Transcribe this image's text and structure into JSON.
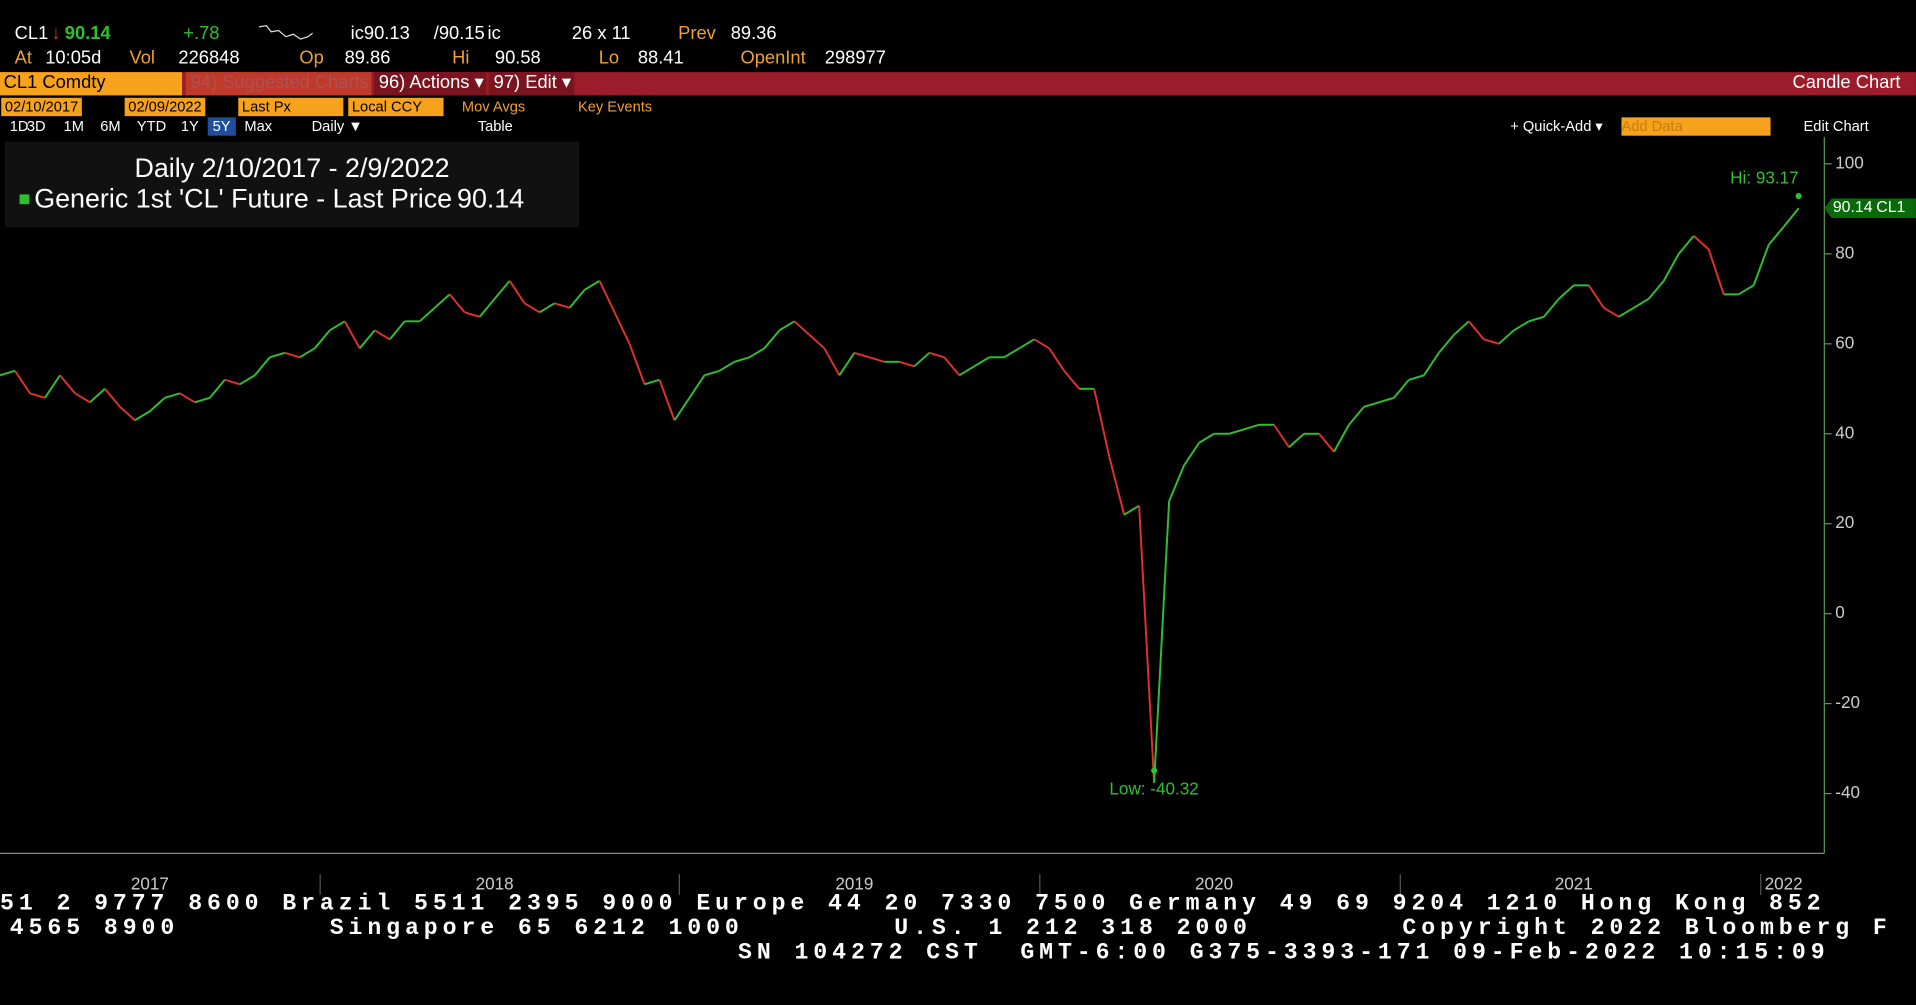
{
  "header": {
    "ticker": "CL1",
    "arrow": "↓",
    "last": "90.14",
    "change": "+.78",
    "bid": "ic90.13",
    "ask": "/90.15",
    "ask_suffix": "ic",
    "size": "26 x 11",
    "prev_label": "Prev",
    "prev": "89.36",
    "at_label": "At",
    "time": "10:05d",
    "vol_label": "Vol",
    "vol": "226848",
    "op_label": "Op",
    "op": "89.86",
    "hi_label": "Hi",
    "hi": "90.58",
    "lo_label": "Lo",
    "lo": "88.41",
    "oi_label": "OpenInt",
    "oi": "298977"
  },
  "toolbar": {
    "security": "CL1 Comdty",
    "suggested": "94) Suggested Charts",
    "actions": "96) Actions ▾",
    "edit": "97) Edit ▾",
    "chart_type": "Candle Chart"
  },
  "controls": {
    "start": "02/10/2017",
    "end": "02/09/2022",
    "field": "Last Px",
    "currency": "Local CCY",
    "mov_avgs": "Mov Avgs",
    "key_events": "Key Events",
    "periods": [
      "1D",
      "3D",
      "1M",
      "6M",
      "YTD",
      "1Y",
      "5Y",
      "Max"
    ],
    "frequency": "Daily ▼",
    "table": "Table",
    "quick_add": "+ Quick-Add ▾",
    "add_data": "Add Data",
    "edit_chart": "Edit Chart"
  },
  "chart_data": {
    "type": "line",
    "title": "Daily 2/10/2017 - 2/9/2022",
    "categories": [
      null,
      null,
      null,
      null,
      null,
      null,
      null,
      null,
      null,
      null,
      "2017",
      null,
      null,
      null,
      null,
      null,
      null,
      null,
      null,
      null,
      null,
      null,
      null,
      null,
      null,
      null,
      null,
      null,
      null,
      null,
      null,
      null,
      null,
      "2018",
      null,
      null,
      null,
      null,
      null,
      null,
      null,
      null,
      null,
      null,
      null,
      null,
      null,
      null,
      null,
      null,
      null,
      null,
      null,
      null,
      null,
      null,
      null,
      "2019",
      null,
      null,
      null,
      null,
      null,
      null,
      null,
      null,
      null,
      null,
      null,
      null,
      null,
      null,
      null,
      null,
      null,
      null,
      null,
      null,
      null,
      null,
      null,
      "2020",
      null,
      null,
      null,
      null,
      null,
      null,
      null,
      null,
      null,
      null,
      null,
      null,
      null,
      null,
      null,
      null,
      null,
      null,
      null,
      null,
      null,
      null,
      null,
      "2021",
      null,
      null,
      null,
      null,
      null,
      null,
      null,
      null,
      null,
      null,
      null,
      null,
      null,
      "2022",
      null
    ],
    "series": [
      {
        "name": "Generic 1st 'CL' Future - Last Price",
        "color": "#2fc02f",
        "down_color": "#e0302f",
        "values": [
          53,
          54,
          49,
          48,
          53,
          49,
          47,
          50,
          46,
          43,
          45,
          48,
          49,
          47,
          48,
          52,
          51,
          53,
          57,
          58,
          57,
          59,
          63,
          65,
          59,
          63,
          61,
          65,
          65,
          68,
          71,
          67,
          66,
          70,
          74,
          69,
          67,
          69,
          68,
          72,
          74,
          67,
          60,
          51,
          52,
          43,
          48,
          53,
          54,
          56,
          57,
          59,
          63,
          65,
          62,
          59,
          53,
          58,
          57,
          56,
          56,
          55,
          58,
          57,
          53,
          55,
          57,
          57,
          59,
          61,
          59,
          54,
          50,
          50,
          35,
          22,
          24,
          -37.6,
          25,
          33,
          38,
          40,
          40,
          41,
          42,
          42,
          37,
          40,
          40,
          36,
          42,
          46,
          47,
          48,
          52,
          53,
          58,
          62,
          65,
          61,
          60,
          63,
          65,
          66,
          70,
          73,
          73,
          68,
          66,
          68,
          70,
          74,
          80,
          84,
          81,
          71,
          71,
          73,
          82,
          86,
          90.14
        ]
      }
    ],
    "ylim": [
      -53.3,
      106
    ],
    "yticks": [
      100,
      80,
      60,
      40,
      20,
      0,
      -20,
      -40
    ],
    "annotations": {
      "high": "Hi: 93.17",
      "low": "Low: -40.32"
    }
  },
  "footer": [
    "51 2 9777 8600 Brazil 5511 2395 9000 Europe 44 20 7330 7500 Germany 49 69 9204 1210 Hong Kong 852",
    "4565 8900        Singapore 65 6212 1000        U.S. 1 212 318 2000        Copyright 2022 Bloomberg F",
    "SN 104272 CST  GMT-6:00 G375-3393-171 09-Feb-2022 10:15:09"
  ]
}
